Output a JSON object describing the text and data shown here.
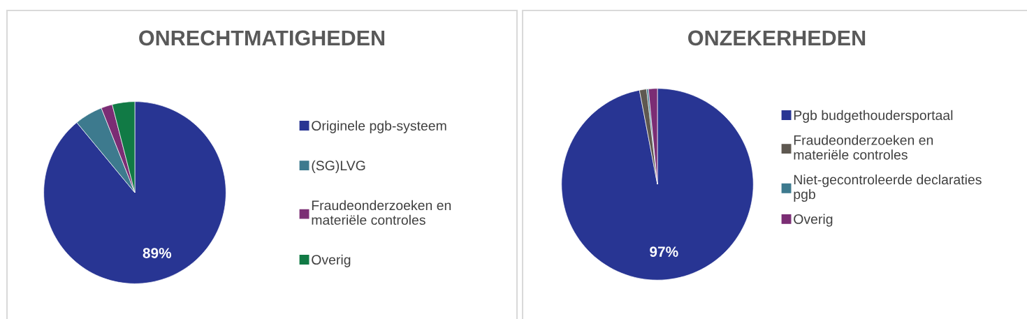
{
  "chart_data": [
    {
      "type": "pie",
      "title": "ONRECHTMATIGHEDEN",
      "categories": [
        "Originele pgb-systeem",
        "(SG)LVG",
        "Fraudeonderzoeken en\nmateriële controles",
        "Overig"
      ],
      "values": [
        89,
        5,
        2,
        4
      ],
      "colors": [
        "#283593",
        "#3d7a8e",
        "#7b2d74",
        "#117a45"
      ],
      "value_labels": [
        "89%",
        null,
        null,
        null
      ],
      "legend": "right"
    },
    {
      "type": "pie",
      "title": "ONZEKERHEDEN",
      "categories": [
        "Pgb budgethoudersportaal",
        "Fraudeonderzoeken en\nmateriële controles",
        "Niet-gecontroleerde declaraties\npgb",
        "Overig"
      ],
      "values": [
        97,
        1.2,
        0.3,
        1.5
      ],
      "colors": [
        "#283593",
        "#5e5850",
        "#3d7a8e",
        "#7b2d74"
      ],
      "value_labels": [
        "97%",
        null,
        null,
        null
      ],
      "legend": "right"
    }
  ]
}
